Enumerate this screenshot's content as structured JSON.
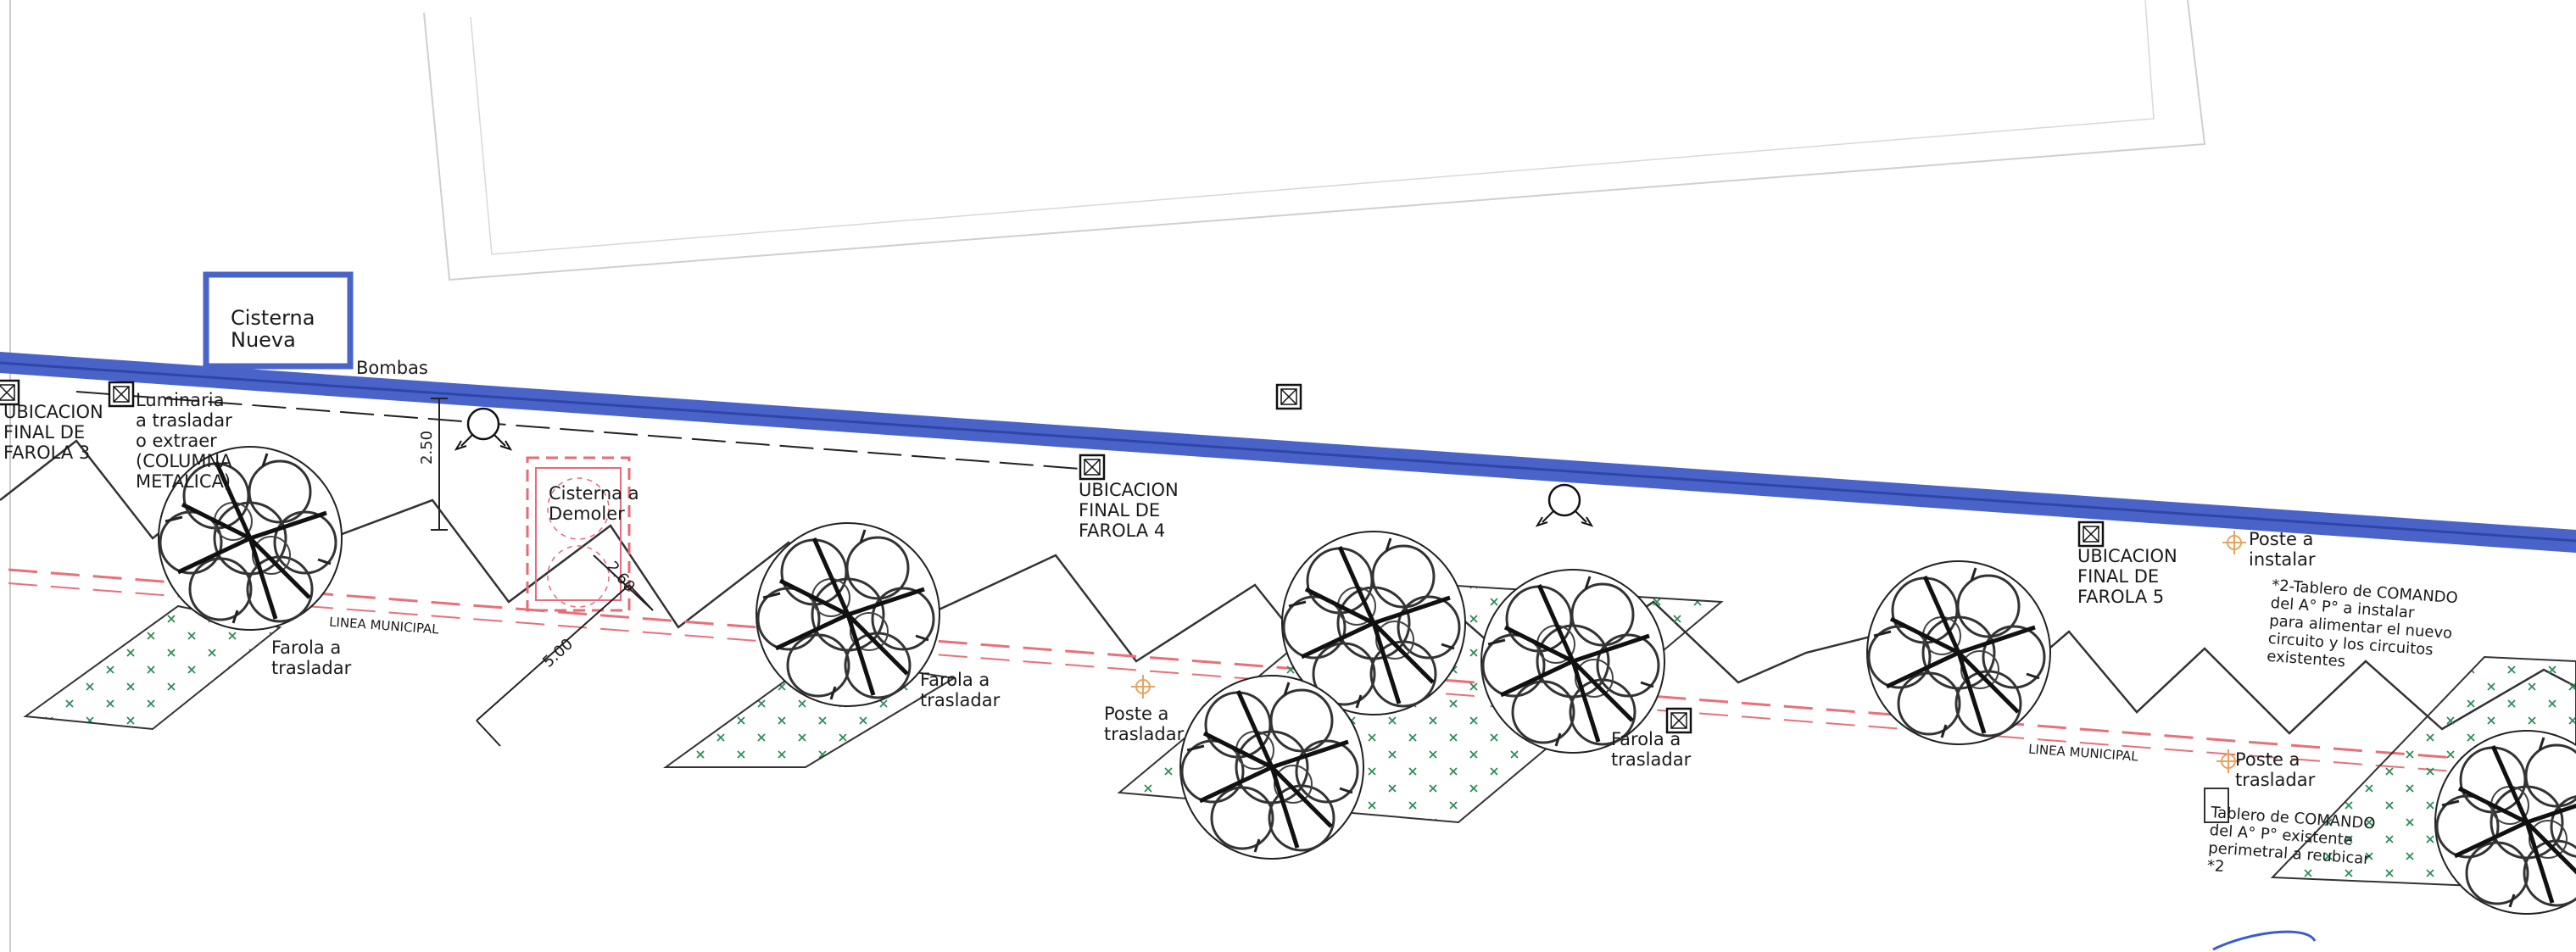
{
  "drawing": {
    "colors": {
      "boundary": "#4a63c9",
      "municipal_line": "#e8707a",
      "demolish": "#e66b78",
      "lighting_symbol": "#e8a260",
      "ground_hatch": "#2e8b57",
      "linework": "#333333",
      "border": "#c8c8c8"
    },
    "tank": {
      "line1": "Cisterna",
      "line2": "Nueva"
    },
    "pumps_label": "Bombas",
    "luminaire": {
      "line1": "Luminaria",
      "line2": "a trasladar",
      "line3": "o extraer",
      "line4": "(COLUMNA",
      "line5": "METALICA)"
    },
    "farola3": {
      "line1": "UBICACION",
      "line2": "FINAL DE",
      "line3": "FAROLA 3"
    },
    "farola4": {
      "line1": "UBICACION",
      "line2": "FINAL DE",
      "line3": "FAROLA 4"
    },
    "farola5": {
      "line1": "UBICACION",
      "line2": "FINAL DE",
      "line3": "FAROLA 5"
    },
    "cistern_demolish": {
      "line1": "Cisterna a",
      "line2": "Demoler"
    },
    "farola_move_1": {
      "line1": "Farola a",
      "line2": "trasladar"
    },
    "farola_move_2": {
      "line1": "Farola a",
      "line2": "trasladar"
    },
    "farola_move_3": {
      "line1": "Farola a",
      "line2": "trasladar"
    },
    "pole_move_1": {
      "line1": "Poste a",
      "line2": "trasladar"
    },
    "pole_move_2": {
      "line1": "Poste a",
      "line2": "trasladar"
    },
    "pole_install": {
      "line1": "Poste a",
      "line2": "instalar"
    },
    "municipal_line_1": "LINEA MUNICIPAL",
    "municipal_line_2": "LINEA MUNICIPAL",
    "dimension_250": "2.50",
    "dimension_260": "2.60",
    "dimension_500": "5.00",
    "panel_new": {
      "line1": "*2-Tablero de COMANDO",
      "line2": "del A° P° a instalar",
      "line3": "para alimentar el nuevo",
      "line4": "circuito y los circuitos",
      "line5": "existentes"
    },
    "panel_existing": {
      "line1": "Tablero de COMANDO",
      "line2": "del A° P° existente",
      "line3": "perimetral a reubicar",
      "line4": "*2"
    },
    "icons": [
      "luminaire-box-icon",
      "pump-symbol-icon",
      "tree-icon",
      "lamp-post-icon",
      "ground-cross-hatch-icon"
    ]
  }
}
